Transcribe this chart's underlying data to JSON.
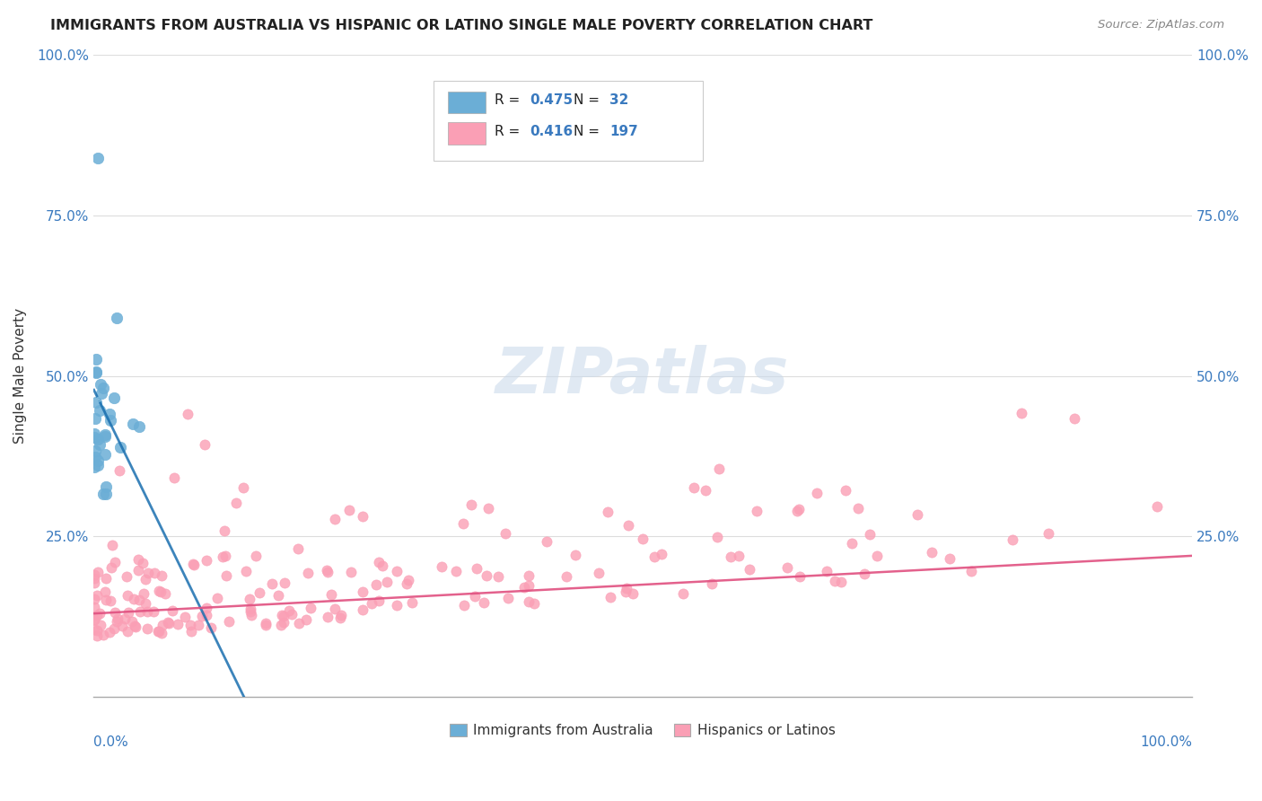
{
  "title": "IMMIGRANTS FROM AUSTRALIA VS HISPANIC OR LATINO SINGLE MALE POVERTY CORRELATION CHART",
  "source": "Source: ZipAtlas.com",
  "ylabel": "Single Male Poverty",
  "watermark": "ZIPatlas",
  "legend1_r": "0.475",
  "legend1_n": "32",
  "legend2_r": "0.416",
  "legend2_n": "197",
  "color_blue": "#6baed6",
  "color_pink": "#fa9fb5",
  "trendline_blue": "#1a6faf",
  "trendline_pink": "#e05080",
  "background": "#ffffff",
  "grid_color": "#dddddd"
}
